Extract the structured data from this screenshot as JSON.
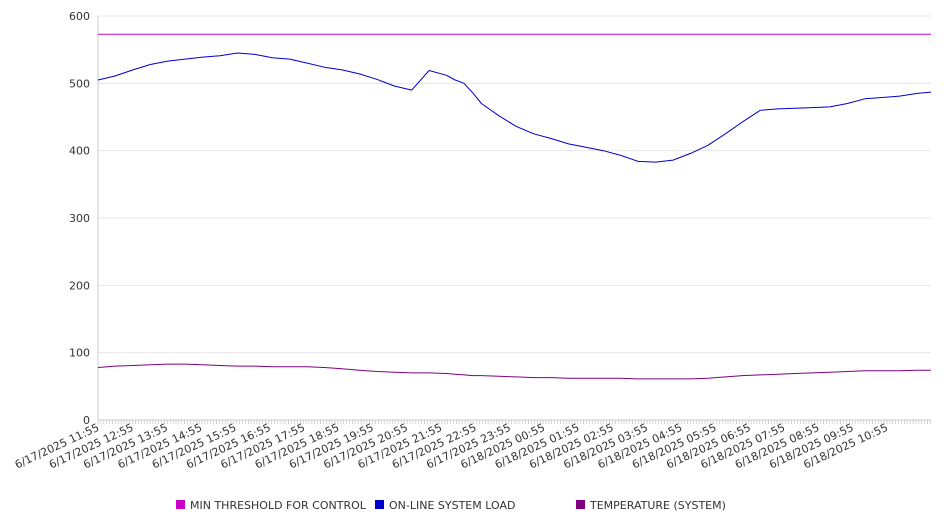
{
  "chart_data": {
    "type": "line",
    "title": "",
    "xlabel": "",
    "ylabel": "",
    "ylim": [
      0,
      600
    ],
    "y_ticks": [
      0,
      100,
      200,
      300,
      400,
      500,
      600
    ],
    "grid": true,
    "legend_position": "bottom",
    "x_tick_labels": [
      "6/17/2025 11:55",
      "6/17/2025 12:55",
      "6/17/2025 13:55",
      "6/17/2025 14:55",
      "6/17/2025 15:55",
      "6/17/2025 16:55",
      "6/17/2025 17:55",
      "6/17/2025 18:55",
      "6/17/2025 19:55",
      "6/17/2025 20:55",
      "6/17/2025 21:55",
      "6/17/2025 22:55",
      "6/17/2025 23:55",
      "6/18/2025 00:55",
      "6/18/2025 01:55",
      "6/18/2025 02:55",
      "6/18/2025 03:55",
      "6/18/2025 04:55",
      "6/18/2025 05:55",
      "6/18/2025 06:55",
      "6/18/2025 07:55",
      "6/18/2025 08:55",
      "6/18/2025 09:55",
      "6/18/2025 10:55"
    ],
    "x_hours": [
      0,
      0.5,
      1,
      1.5,
      2,
      2.5,
      3,
      3.5,
      4,
      4.5,
      5,
      5.5,
      6,
      6.5,
      7,
      7.5,
      8,
      8.5,
      9,
      9.5,
      10,
      10.25,
      10.5,
      10.75,
      11,
      11.5,
      12,
      12.5,
      13,
      13.5,
      14,
      14.5,
      15,
      15.5,
      16,
      16.5,
      17,
      17.5,
      18,
      18.5,
      19,
      19.5,
      20,
      20.5,
      21,
      21.5,
      22,
      22.5,
      23,
      23.5,
      23.9
    ],
    "series": [
      {
        "name": "MIN THRESHOLD FOR CONTROL",
        "color": "#cc00cc",
        "values": [
          573,
          573,
          573,
          573,
          573,
          573,
          573,
          573,
          573,
          573,
          573,
          573,
          573,
          573,
          573,
          573,
          573,
          573,
          573,
          573,
          573,
          573,
          573,
          573,
          573,
          573,
          573,
          573,
          573,
          573,
          573,
          573,
          573,
          573,
          573,
          573,
          573,
          573,
          573,
          573,
          573,
          573,
          573,
          573,
          573,
          573,
          573,
          573,
          573,
          573,
          573
        ]
      },
      {
        "name": "ON-LINE SYSTEM LOAD",
        "color": "#0000cc",
        "values": [
          505,
          511,
          520,
          528,
          533,
          536,
          539,
          541,
          545,
          543,
          538,
          536,
          530,
          524,
          520,
          514,
          506,
          496,
          490,
          519,
          512,
          505,
          500,
          486,
          470,
          452,
          436,
          425,
          418,
          410,
          405,
          400,
          393,
          384,
          383,
          386,
          396,
          408,
          425,
          443,
          460,
          462,
          463,
          464,
          465,
          470,
          477,
          479,
          481,
          485,
          487
        ]
      },
      {
        "name": "TEMPERATURE (SYSTEM)",
        "color": "#800080",
        "values": [
          78,
          80,
          81,
          82,
          83,
          83,
          82,
          81,
          80,
          80,
          79,
          79,
          79,
          78,
          76,
          74,
          72,
          71,
          70,
          70,
          69,
          68,
          67,
          66,
          66,
          65,
          64,
          63,
          63,
          62,
          62,
          62,
          62,
          61,
          61,
          61,
          61,
          62,
          64,
          66,
          67,
          68,
          69,
          70,
          71,
          72,
          73,
          73,
          73,
          74,
          74
        ]
      }
    ]
  }
}
